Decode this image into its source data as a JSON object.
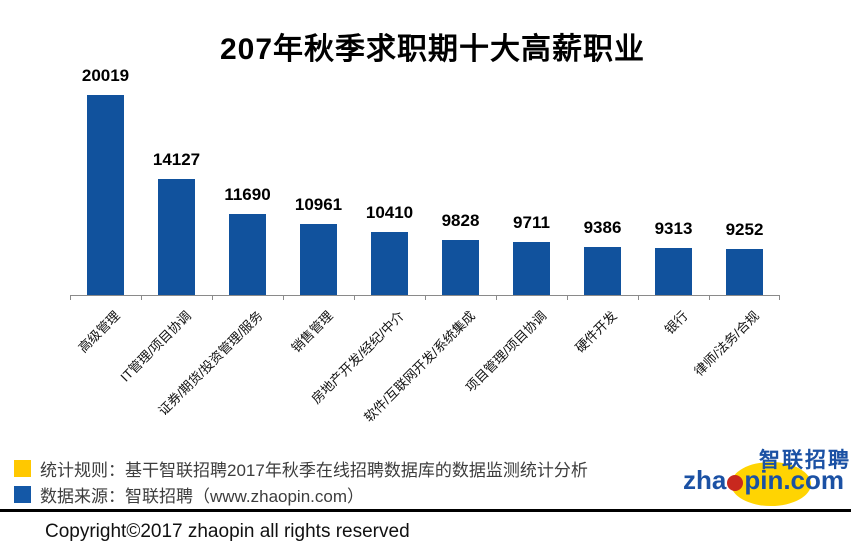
{
  "title": "207年秋季求职期十大高薪职业",
  "chart_data": {
    "type": "bar",
    "title": "207年秋季求职期十大高薪职业",
    "categories": [
      "高级管理",
      "IT管理/项目协调",
      "证券/期货/投资管理/服务",
      "销售管理",
      "房地产开发/经纪/中介",
      "软件/互联网开发/系统集成",
      "项目管理/项目协调",
      "硬件开发",
      "银行",
      "律师/法务/合规"
    ],
    "values": [
      20019,
      14127,
      11690,
      10961,
      10410,
      9828,
      9711,
      9386,
      9313,
      9252
    ],
    "xlabel": "",
    "ylabel": "",
    "ylim": [
      6000,
      21000
    ],
    "grid": false,
    "legend_position": "none",
    "data_labels": true,
    "bar_color": "#11529d",
    "axis_color": "#8a8a8a"
  },
  "footnotes": [
    {
      "marker_color": "#ffc800",
      "text": "统计规则：基干智联招聘2017年秋季在线招聘数据库的数据监测统计分析"
    },
    {
      "marker_color": "#1458a7",
      "text": "数据来源：智联招聘（www.zhaopin.com）"
    }
  ],
  "logo": {
    "cn": "智联招聘",
    "en_prefix": "zha",
    "en_suffix": "pin.com",
    "dot_color": "#c8281e",
    "ellipse_color": "#ffd402",
    "text_color": "#1b51a4"
  },
  "copyright": "Copyright©2017 zhaopin all rights reserved"
}
